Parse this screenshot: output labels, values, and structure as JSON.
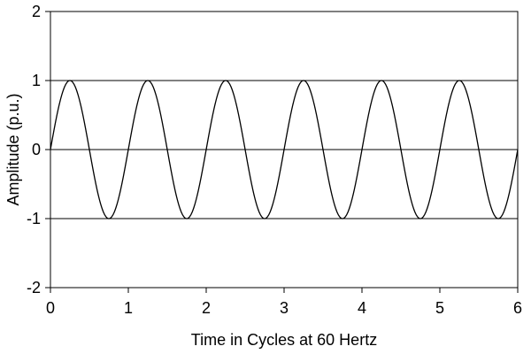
{
  "chart_data": {
    "type": "line",
    "title": "",
    "xlabel": "Time in Cycles at 60 Hertz",
    "ylabel": "Amplitude (p.u.)",
    "xlim": [
      0,
      6
    ],
    "ylim": [
      -2,
      2
    ],
    "x_ticks": [
      "0",
      "1",
      "2",
      "3",
      "4",
      "5",
      "6"
    ],
    "y_ticks": [
      "2",
      "1",
      "0",
      "-1",
      "-2"
    ],
    "x_tick_values": [
      0,
      1,
      2,
      3,
      4,
      5,
      6
    ],
    "y_tick_values": [
      2,
      1,
      0,
      -1,
      -2
    ],
    "gridlines_y": [
      1,
      0,
      -1
    ],
    "grid": "horizontal at -1, 0, 1",
    "legend": "none",
    "series": [
      {
        "function": "sin",
        "amplitude": 1,
        "cycles": 6,
        "x_start": 0,
        "x_end": 6,
        "color": "#000000"
      }
    ]
  }
}
